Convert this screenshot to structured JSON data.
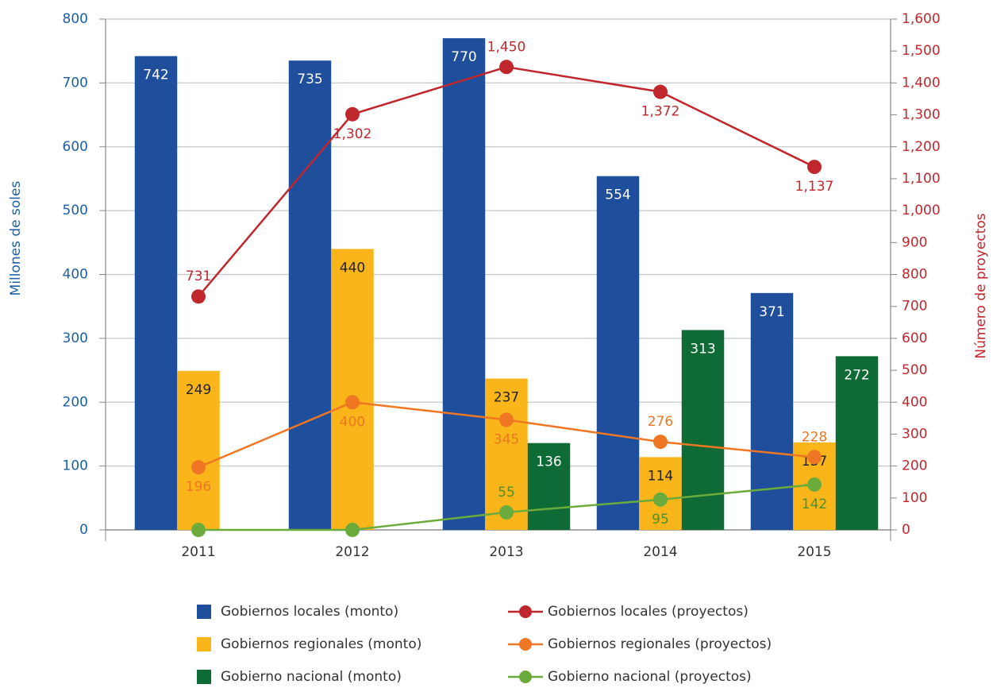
{
  "chart_data": {
    "type": "bar",
    "categories": [
      "2011",
      "2012",
      "2013",
      "2014",
      "2015"
    ],
    "ylabel": "Millones de soles",
    "y2label": "Número de proyectos",
    "ylim": [
      0,
      800
    ],
    "yticks": [
      0,
      100,
      200,
      300,
      400,
      500,
      600,
      700,
      800
    ],
    "y2lim": [
      0,
      1600
    ],
    "y2ticks": [
      0,
      100,
      200,
      300,
      400,
      500,
      600,
      700,
      800,
      900,
      {
        "value": 1000,
        "label": "1,000"
      },
      {
        "value": 1100,
        "label": "1,100"
      },
      {
        "value": 1200,
        "label": "1,200"
      },
      {
        "value": 1300,
        "label": "1,300"
      },
      {
        "value": 1400,
        "label": "1,400"
      },
      {
        "value": 1500,
        "label": "1,500"
      },
      {
        "value": 1600,
        "label": "1,600"
      }
    ],
    "grid": true,
    "series": [
      {
        "name": "Gobiernos locales (monto)",
        "type": "bar",
        "color": "#1f4e9c",
        "values": [
          742,
          735,
          770,
          554,
          371
        ]
      },
      {
        "name": "Gobiernos regionales (monto)",
        "type": "bar",
        "color": "#f9b51a",
        "values": [
          249,
          440,
          237,
          114,
          137
        ]
      },
      {
        "name": "Gobierno nacional (monto)",
        "type": "bar",
        "color": "#0f6b35",
        "values": [
          null,
          null,
          136,
          313,
          272
        ]
      },
      {
        "name": "Gobiernos locales (proyectos)",
        "type": "line",
        "axis": "y2",
        "color": "#c0272d",
        "values": [
          731,
          1302,
          1450,
          1372,
          1137
        ],
        "value_labels": [
          "731",
          "1,302",
          "1,450",
          "1,372",
          "1,137"
        ]
      },
      {
        "name": "Gobiernos regionales (proyectos)",
        "type": "line",
        "axis": "y2",
        "color": "#ef7622",
        "values": [
          196,
          400,
          345,
          276,
          228
        ],
        "value_labels": [
          "196",
          "400",
          "345",
          "276",
          "228"
        ]
      },
      {
        "name": "Gobierno nacional (proyectos)",
        "type": "line",
        "axis": "y2",
        "color": "#6aab3c",
        "values": [
          0,
          0,
          55,
          95,
          142
        ],
        "value_labels": [
          null,
          null,
          "55",
          "95",
          "142"
        ]
      }
    ]
  }
}
